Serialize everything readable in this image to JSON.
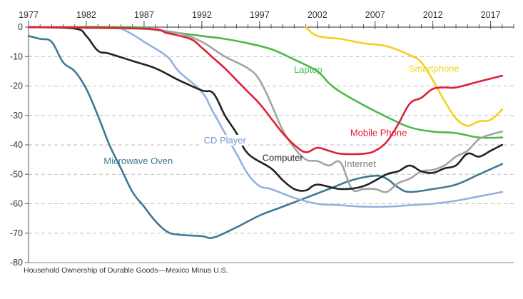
{
  "chart_data": {
    "type": "line",
    "title": "",
    "xlabel": "",
    "ylabel": "",
    "caption": "Household Ownership of Durable Goods—Mexico Minus U.S.",
    "xlim": [
      1977,
      2019
    ],
    "ylim": [
      -80,
      0
    ],
    "x_ticks": [
      "1977",
      "1982",
      "1987",
      "1992",
      "1997",
      "2002",
      "2007",
      "2012",
      "2017"
    ],
    "y_ticks": [
      "0",
      "-10",
      "-20",
      "-30",
      "-40",
      "-50",
      "-60",
      "-70",
      "-80"
    ],
    "grid": "horizontal-dashed",
    "series": [
      {
        "name": "Microwave Oven",
        "color": "#3d7a93",
        "x": [
          1977,
          1978,
          1979,
          1980,
          1981,
          1982,
          1983,
          1984,
          1985,
          1986,
          1987,
          1988,
          1989,
          1990,
          1992,
          1993,
          1995,
          1997,
          1999,
          2001,
          2003,
          2005,
          2007,
          2008,
          2009,
          2010,
          2012,
          2014,
          2016,
          2018
        ],
        "y": [
          -3,
          -4,
          -5,
          -12,
          -15,
          -21,
          -30,
          -40,
          -48,
          -56,
          -61,
          -66,
          -69.5,
          -70.5,
          -71,
          -71.5,
          -68,
          -64,
          -61,
          -58,
          -55,
          -52,
          -50.5,
          -51.5,
          -54.5,
          -56,
          -55,
          -53.5,
          -50,
          -46.5
        ]
      },
      {
        "name": "CD Player",
        "color": "#92b3de",
        "x": [
          1977,
          1982,
          1984,
          1985,
          1986,
          1987,
          1989,
          1990,
          1992,
          1993,
          1995,
          1996,
          1997,
          1998,
          2000,
          2002,
          2004,
          2006,
          2008,
          2010,
          2012,
          2014,
          2016,
          2018
        ],
        "y": [
          0,
          0,
          0,
          -0.5,
          -2.5,
          -5,
          -10,
          -15,
          -22,
          -29,
          -43,
          -50,
          -54,
          -55,
          -58,
          -60,
          -60.5,
          -61,
          -61,
          -60.5,
          -60,
          -59,
          -57.5,
          -56
        ]
      },
      {
        "name": "Computer",
        "color": "#222222",
        "x": [
          1977,
          1981,
          1982,
          1983,
          1984,
          1986,
          1988,
          1990,
          1992,
          1993,
          1994,
          1995,
          1996,
          1998,
          1999,
          2000,
          2001,
          2002,
          2004,
          2006,
          2008,
          2009,
          2010,
          2011,
          2012,
          2013,
          2014,
          2015,
          2016,
          2017,
          2018
        ],
        "y": [
          0,
          -0.5,
          -3,
          -8,
          -9,
          -11.5,
          -14,
          -18,
          -21.5,
          -22.5,
          -30,
          -36,
          -43,
          -48,
          -52,
          -55,
          -55.5,
          -53.5,
          -55,
          -54,
          -50,
          -49,
          -47,
          -49,
          -49.5,
          -48,
          -47,
          -43,
          -44,
          -42,
          -40
        ]
      },
      {
        "name": "Laptop",
        "color": "#4bb948",
        "x": [
          1977,
          1986,
          1988,
          1990,
          1992,
          1994,
          1996,
          1998,
          2000,
          2002,
          2003,
          2004,
          2006,
          2008,
          2010,
          2012,
          2014,
          2016,
          2018
        ],
        "y": [
          0,
          0,
          -1,
          -2,
          -3,
          -4,
          -5.5,
          -7.5,
          -11,
          -15,
          -19,
          -22,
          -26.5,
          -30.5,
          -34,
          -35.5,
          -36,
          -37.5,
          -37.5
        ]
      },
      {
        "name": "Mobile Phone",
        "color": "#e21f36",
        "x": [
          1977,
          1987,
          1989,
          1991,
          1992,
          1993,
          1994,
          1995,
          1996,
          1997,
          1998,
          1999,
          2000,
          2001,
          2002,
          2003,
          2004,
          2006,
          2007,
          2008,
          2009,
          2010,
          2011,
          2012,
          2013,
          2014,
          2016,
          2018
        ],
        "y": [
          0,
          -0.5,
          -2,
          -4,
          -7,
          -10.5,
          -14,
          -18,
          -22,
          -26,
          -31,
          -36,
          -40,
          -42.5,
          -41,
          -42,
          -43,
          -43,
          -42,
          -39,
          -33,
          -26,
          -24,
          -21,
          -20.5,
          -20.5,
          -18.5,
          -16.5
        ]
      },
      {
        "name": "Internet",
        "color": "#a3a3a3",
        "x": [
          1977,
          1986,
          1988,
          1990,
          1992,
          1994,
          1996,
          1997,
          1998,
          1999,
          2000,
          2001,
          2002,
          2003,
          2004,
          2005,
          2006,
          2007,
          2008,
          2009,
          2010,
          2011,
          2012,
          2013,
          2014,
          2015,
          2016,
          2017,
          2018
        ],
        "y": [
          0,
          -0.5,
          -1,
          -2,
          -5,
          -10,
          -14,
          -18,
          -26,
          -35,
          -41,
          -45,
          -45.5,
          -47,
          -46,
          -55,
          -55,
          -55,
          -56,
          -53,
          -51.5,
          -49,
          -48.5,
          -47,
          -44,
          -42,
          -38,
          -36.5,
          -35.5
        ]
      },
      {
        "name": "Smartphone",
        "color": "#f2d21b",
        "x": [
          2001,
          2002,
          2004,
          2006,
          2008,
          2010,
          2011,
          2012,
          2013,
          2014,
          2015,
          2016,
          2017,
          2018
        ],
        "y": [
          0,
          -3,
          -4,
          -5.5,
          -6.5,
          -9.5,
          -12,
          -18,
          -25,
          -31,
          -33.5,
          -32,
          -31.5,
          -28
        ]
      }
    ],
    "series_labels": [
      {
        "series": "Microwave Oven",
        "text": "Microwave Oven",
        "at_x": 1986.5,
        "at_y": -46.5
      },
      {
        "series": "CD Player",
        "text": "CD Player",
        "at_x": 1994,
        "at_y": -39.5
      },
      {
        "series": "Computer",
        "text": "Computer",
        "at_x": 1999,
        "at_y": -45.5
      },
      {
        "series": "Laptop",
        "text": "Laptop",
        "at_x": 2001.2,
        "at_y": -15.5
      },
      {
        "series": "Mobile Phone",
        "text": "Mobile Phone",
        "at_x": 2007.3,
        "at_y": -37
      },
      {
        "series": "Internet",
        "text": "Internet",
        "at_x": 2005.7,
        "at_y": -47.5
      },
      {
        "series": "Smartphone",
        "text": "Smartphone",
        "at_x": 2012.1,
        "at_y": -15.2
      }
    ]
  }
}
